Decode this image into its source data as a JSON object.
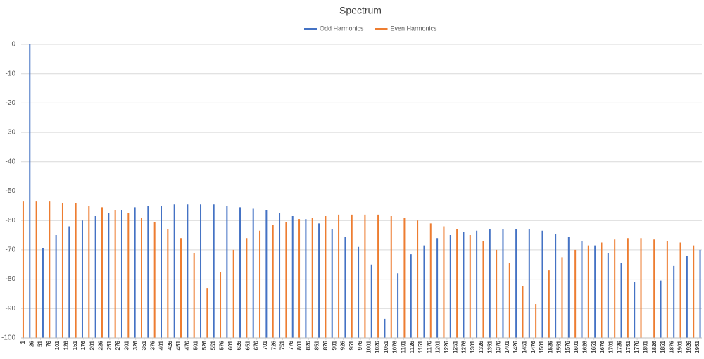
{
  "chart_data": {
    "type": "bar",
    "title": "Spectrum",
    "series": [
      {
        "name": "Odd Harmonics",
        "color": "#4472c4",
        "x": [
          20,
          58,
          96,
          134,
          172,
          210,
          248,
          286,
          324,
          362,
          400,
          438,
          476,
          514,
          552,
          590,
          628,
          666,
          704,
          742,
          780,
          818,
          856,
          894,
          932,
          970,
          1008,
          1046,
          1084,
          1122,
          1160,
          1198,
          1236,
          1274,
          1312,
          1350,
          1388,
          1426,
          1464,
          1502,
          1540,
          1578,
          1616,
          1654,
          1692,
          1730,
          1768,
          1806,
          1844,
          1882,
          1920,
          1958
        ],
        "values": [
          0,
          -69.5,
          -65,
          -62,
          -60,
          -58.5,
          -57.5,
          -56.5,
          -55.5,
          -55,
          -55,
          -54.5,
          -54.5,
          -54.5,
          -54.5,
          -55,
          -55.5,
          -56,
          -56.5,
          -57.5,
          -58.5,
          -59.5,
          -61,
          -63,
          -65.5,
          -69,
          -75,
          -93.5,
          -78,
          -71.5,
          -68.5,
          -66,
          -65,
          -64,
          -63.5,
          -63,
          -63,
          -63,
          -63,
          -63.5,
          -64.5,
          -65.5,
          -67,
          -68.5,
          -71,
          -74.5,
          -81,
          -100,
          -80.5,
          -75.5,
          -72,
          -70
        ]
      },
      {
        "name": "Even Harmonics",
        "color": "#ed7d31",
        "x": [
          1,
          39,
          77,
          115,
          153,
          191,
          229,
          267,
          305,
          343,
          381,
          419,
          457,
          495,
          533,
          571,
          609,
          647,
          685,
          723,
          761,
          799,
          837,
          875,
          913,
          951,
          989,
          1027,
          1065,
          1103,
          1141,
          1179,
          1217,
          1255,
          1293,
          1331,
          1369,
          1407,
          1445,
          1483,
          1521,
          1559,
          1597,
          1635,
          1673,
          1711,
          1749,
          1787,
          1825,
          1863,
          1901,
          1939
        ],
        "values": [
          -53.5,
          -53.5,
          -53.5,
          -54,
          -54,
          -55,
          -55.5,
          -56.5,
          -57.5,
          -59,
          -60.5,
          -63,
          -66,
          -71,
          -83,
          -77.5,
          -70,
          -66,
          -63.5,
          -61.5,
          -60.5,
          -59.5,
          -59,
          -58.5,
          -58,
          -58,
          -58,
          -58,
          -58.5,
          -59,
          -60,
          -61,
          -62,
          -63,
          -65,
          -67,
          -70,
          -74.5,
          -82.5,
          -88.5,
          -77,
          -72.5,
          -70,
          -68.5,
          -67.5,
          -66.5,
          -66,
          -66,
          -66.5,
          -67,
          -67.5,
          -68.5
        ]
      }
    ],
    "xlim": [
      -5,
      1963
    ],
    "xticks": [
      1,
      26,
      51,
      76,
      101,
      126,
      151,
      176,
      201,
      226,
      251,
      276,
      301,
      326,
      351,
      376,
      401,
      426,
      451,
      476,
      501,
      526,
      551,
      576,
      601,
      626,
      651,
      676,
      701,
      726,
      751,
      776,
      801,
      826,
      851,
      876,
      901,
      926,
      951,
      976,
      1001,
      1026,
      1051,
      1076,
      1101,
      1126,
      1151,
      1176,
      1201,
      1226,
      1251,
      1276,
      1301,
      1326,
      1351,
      1376,
      1401,
      1426,
      1451,
      1476,
      1501,
      1526,
      1551,
      1576,
      1601,
      1626,
      1651,
      1676,
      1701,
      1726,
      1751,
      1776,
      1801,
      1826,
      1851,
      1876,
      1901,
      1926,
      1951
    ],
    "ylim": [
      -100,
      0
    ],
    "yticks": [
      0,
      -10,
      -20,
      -30,
      -40,
      -50,
      -60,
      -70,
      -80,
      -90,
      -100
    ],
    "grid": true,
    "legend": "top"
  }
}
